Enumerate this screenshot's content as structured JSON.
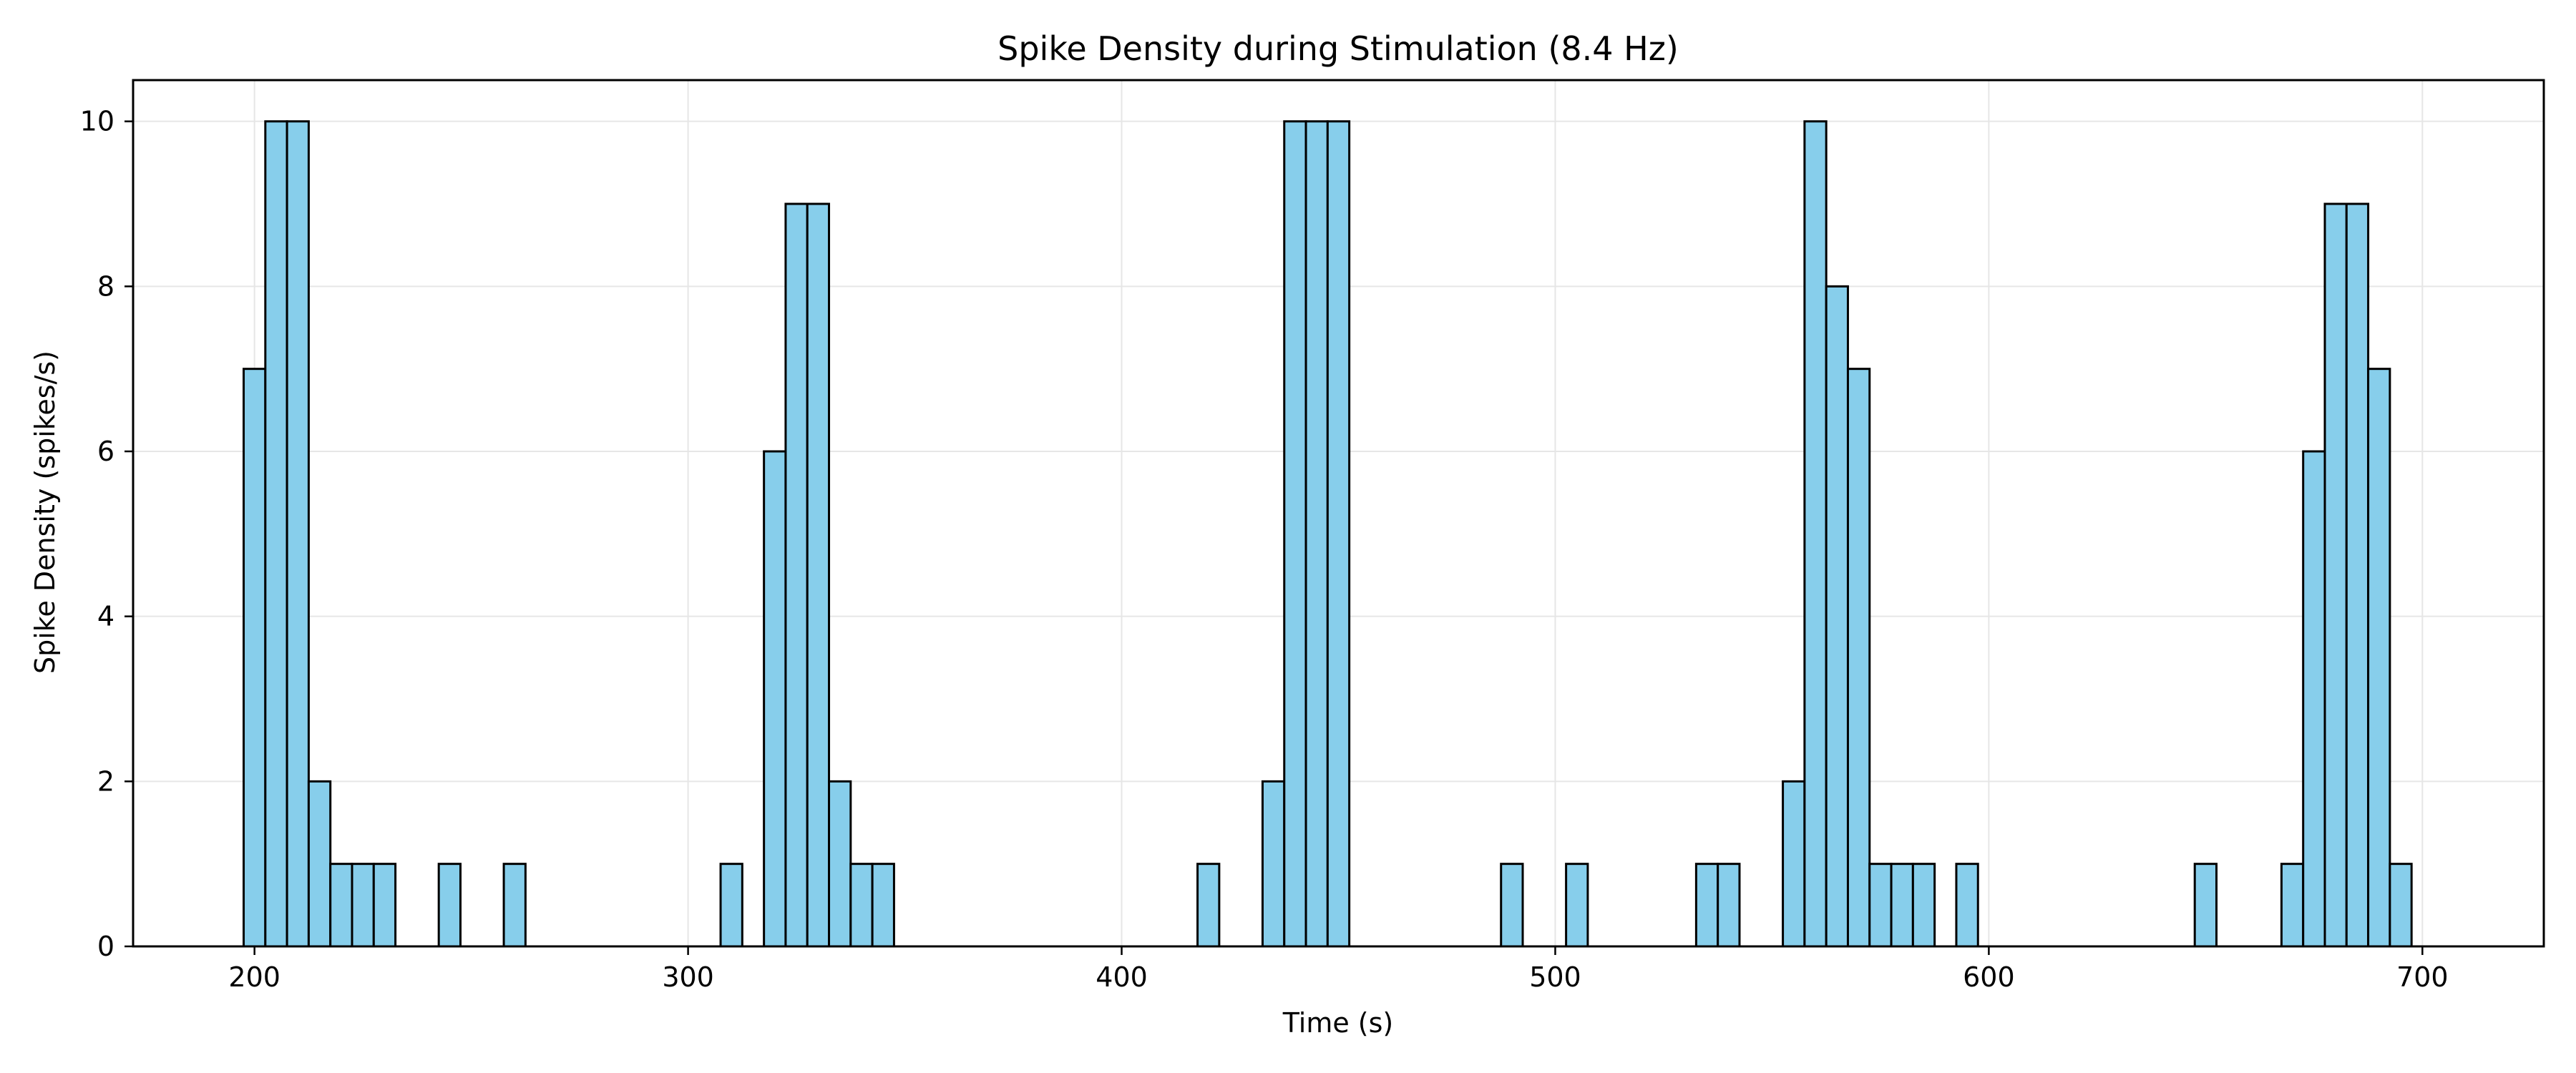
{
  "chart_data": {
    "type": "bar",
    "title": "Spike Density during Stimulation (8.4 Hz)",
    "xlabel": "Time (s)",
    "ylabel": "Spike Density (spikes/s)",
    "xlim": [
      172,
      728
    ],
    "ylim": [
      0,
      10.5
    ],
    "xticks": [
      200,
      300,
      400,
      500,
      600,
      700
    ],
    "yticks": [
      0,
      2,
      4,
      6,
      8,
      10
    ],
    "grid": true,
    "legend": "none",
    "bin_width": 5,
    "bins": [
      {
        "x": 197.5,
        "value": 7
      },
      {
        "x": 202.5,
        "value": 10
      },
      {
        "x": 207.5,
        "value": 10
      },
      {
        "x": 212.5,
        "value": 2
      },
      {
        "x": 217.5,
        "value": 1
      },
      {
        "x": 222.5,
        "value": 1
      },
      {
        "x": 227.5,
        "value": 1
      },
      {
        "x": 242.5,
        "value": 1
      },
      {
        "x": 257.5,
        "value": 1
      },
      {
        "x": 307.5,
        "value": 1
      },
      {
        "x": 317.5,
        "value": 6
      },
      {
        "x": 322.5,
        "value": 9
      },
      {
        "x": 327.5,
        "value": 9
      },
      {
        "x": 332.5,
        "value": 2
      },
      {
        "x": 337.5,
        "value": 1
      },
      {
        "x": 342.5,
        "value": 1
      },
      {
        "x": 417.5,
        "value": 1
      },
      {
        "x": 432.5,
        "value": 2
      },
      {
        "x": 437.5,
        "value": 10
      },
      {
        "x": 442.5,
        "value": 10
      },
      {
        "x": 447.5,
        "value": 10
      },
      {
        "x": 487.5,
        "value": 1
      },
      {
        "x": 502.5,
        "value": 1
      },
      {
        "x": 532.5,
        "value": 1
      },
      {
        "x": 537.5,
        "value": 1
      },
      {
        "x": 552.5,
        "value": 2
      },
      {
        "x": 557.5,
        "value": 10
      },
      {
        "x": 562.5,
        "value": 8
      },
      {
        "x": 567.5,
        "value": 7
      },
      {
        "x": 572.5,
        "value": 1
      },
      {
        "x": 577.5,
        "value": 1
      },
      {
        "x": 582.5,
        "value": 1
      },
      {
        "x": 592.5,
        "value": 1
      },
      {
        "x": 647.5,
        "value": 1
      },
      {
        "x": 667.5,
        "value": 1
      },
      {
        "x": 672.5,
        "value": 6
      },
      {
        "x": 677.5,
        "value": 9
      },
      {
        "x": 682.5,
        "value": 9
      },
      {
        "x": 687.5,
        "value": 7
      },
      {
        "x": 692.5,
        "value": 1
      }
    ]
  },
  "colors": {
    "bar_fill": "#87ceeb",
    "bar_edge": "#000000",
    "grid": "#e6e6e6",
    "axis": "#000000"
  }
}
